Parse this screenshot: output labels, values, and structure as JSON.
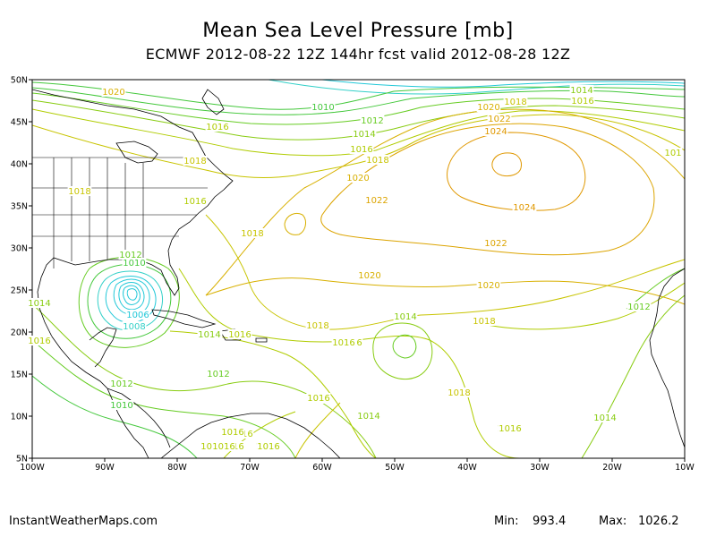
{
  "header": {
    "title": "Mean Sea Level Pressure [mb]",
    "subtitle": "ECMWF 2012-08-22 12Z 144hr fcst valid 2012-08-28 12Z"
  },
  "footer": {
    "source": "InstantWeatherMaps.com",
    "min_label": "Min:",
    "min_value": "993.4",
    "max_label": "Max:",
    "max_value": "1026.2"
  },
  "axes": {
    "lat_ticks": [
      "50N",
      "45N",
      "40N",
      "35N",
      "30N",
      "25N",
      "20N",
      "15N",
      "10N",
      "5N"
    ],
    "lon_ticks": [
      "100W",
      "90W",
      "80W",
      "70W",
      "60W",
      "50W",
      "40W",
      "30W",
      "20W",
      "10W"
    ]
  },
  "colors": {
    "c1006": "#22c8d8",
    "c1008": "#33d0c8",
    "c1010": "#44c83c",
    "c1012": "#66cc22",
    "c1014": "#88cc11",
    "c1016": "#b0cc00",
    "c1018": "#c8c400",
    "c1020": "#d8b000",
    "c1022": "#dca400",
    "c1024": "#e09800",
    "land": "#000000"
  },
  "contour_labels": [
    {
      "text": "1020",
      "c": "c1020"
    },
    {
      "text": "1010",
      "c": "c1010"
    },
    {
      "text": "1012",
      "c": "c1012"
    },
    {
      "text": "1014",
      "c": "c1014"
    },
    {
      "text": "1016",
      "c": "c1016"
    },
    {
      "text": "1018",
      "c": "c1018"
    },
    {
      "text": "1018",
      "c": "c1018"
    },
    {
      "text": "1016",
      "c": "c1016"
    },
    {
      "text": "1018",
      "c": "c1018"
    },
    {
      "text": "1016",
      "c": "c1016"
    },
    {
      "text": "1018",
      "c": "c1018"
    },
    {
      "text": "1020",
      "c": "c1020"
    },
    {
      "text": "1022",
      "c": "c1022"
    },
    {
      "text": "1024",
      "c": "c1024"
    },
    {
      "text": "1020",
      "c": "c1020"
    },
    {
      "text": "1018",
      "c": "c1018"
    },
    {
      "text": "1022",
      "c": "c1022"
    },
    {
      "text": "1024",
      "c": "c1024"
    },
    {
      "text": "1022",
      "c": "c1022"
    },
    {
      "text": "1014",
      "c": "c1014"
    },
    {
      "text": "1016",
      "c": "c1016"
    },
    {
      "text": "1018",
      "c": "c1018"
    },
    {
      "text": "1020",
      "c": "c1020"
    },
    {
      "text": "1020",
      "c": "c1020"
    },
    {
      "text": "1018",
      "c": "c1018"
    },
    {
      "text": "1016",
      "c": "c1016"
    },
    {
      "text": "1018",
      "c": "c1018"
    },
    {
      "text": "1016",
      "c": "c1016"
    },
    {
      "text": "1014",
      "c": "c1014"
    },
    {
      "text": "1012",
      "c": "c1012"
    },
    {
      "text": "1010",
      "c": "c1010"
    },
    {
      "text": "1006",
      "c": "c1006"
    },
    {
      "text": "1008",
      "c": "c1008"
    },
    {
      "text": "1014",
      "c": "c1014"
    },
    {
      "text": "1016",
      "c": "c1016"
    },
    {
      "text": "1012",
      "c": "c1012"
    },
    {
      "text": "1012",
      "c": "c1012"
    },
    {
      "text": "1010",
      "c": "c1010"
    },
    {
      "text": "1014",
      "c": "c1014"
    },
    {
      "text": "1016",
      "c": "c1016"
    },
    {
      "text": "1016",
      "c": "c1016"
    },
    {
      "text": "1016",
      "c": "c1016"
    },
    {
      "text": "1016",
      "c": "c1016"
    },
    {
      "text": "1016",
      "c": "c1016"
    },
    {
      "text": "1016",
      "c": "c1016"
    },
    {
      "text": "1014",
      "c": "c1014"
    },
    {
      "text": "1012",
      "c": "c1012"
    },
    {
      "text": "1014",
      "c": "c1014"
    },
    {
      "text": "1016",
      "c": "c1016"
    },
    {
      "text": "1012",
      "c": "c1012"
    },
    {
      "text": "1016",
      "c": "c1016"
    },
    {
      "text": "1016",
      "c": "c1016"
    },
    {
      "text": "1016",
      "c": "c1016"
    },
    {
      "text": "1014",
      "c": "c1014"
    },
    {
      "text": "1016",
      "c": "c1016"
    },
    {
      "text": "1016",
      "c": "c1016"
    },
    {
      "text": "1012",
      "c": "c1012"
    },
    {
      "text": "1016",
      "c": "c1016"
    },
    {
      "text": "101",
      "c": "c1016"
    }
  ]
}
